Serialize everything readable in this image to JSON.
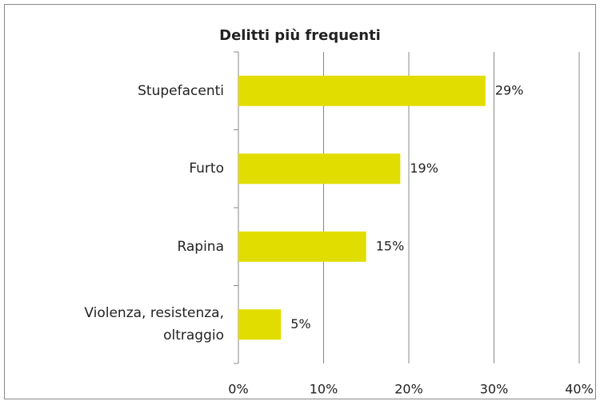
{
  "chart_data": {
    "type": "barh",
    "title": "Delitti più frequenti",
    "categories": [
      "Stupefacenti",
      "Furto",
      "Rapina",
      "Violenza, resistenza, oltraggio"
    ],
    "values": [
      29,
      19,
      15,
      5
    ],
    "value_labels": [
      "29%",
      "19%",
      "15%",
      "5%"
    ],
    "color": "#e2dd00",
    "xlim": [
      0,
      40
    ],
    "xticks": [
      {
        "value": 0,
        "label": "0%"
      },
      {
        "value": 10,
        "label": "10%"
      },
      {
        "value": 20,
        "label": "20%"
      },
      {
        "value": 30,
        "label": "30%"
      },
      {
        "value": 40,
        "label": "40%"
      }
    ],
    "grid": true
  }
}
